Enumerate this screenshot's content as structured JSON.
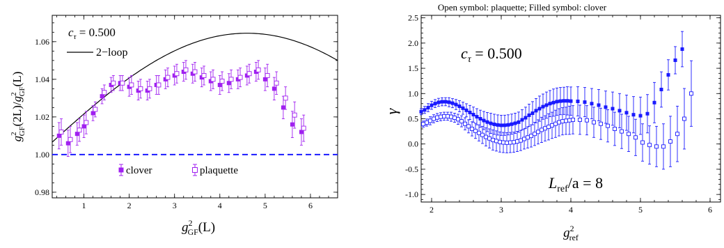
{
  "chart_data": [
    {
      "type": "scatter",
      "annotation": "c_τ = 0.500",
      "xlabel": "g²_GF(L)",
      "ylabel": "g²_GF(2L)/g²_GF(L)",
      "xlim": [
        0.3,
        6.6
      ],
      "ylim": [
        0.977,
        1.074
      ],
      "x_ticks": [
        "1",
        "2",
        "3",
        "4",
        "5",
        "6"
      ],
      "y_ticks": [
        "0.98",
        "1.00",
        "1.02",
        "1.04",
        "1.06"
      ],
      "reference_line": {
        "y": 1.0,
        "style": "dashed",
        "color": "#1a1aff"
      },
      "curve": {
        "name": "2−loop",
        "color": "#000000"
      },
      "legend_position": "bottom",
      "series": [
        {
          "name": "clover",
          "marker": "filled-square",
          "color": "#a020f0",
          "x": [
            0.45,
            0.65,
            0.85,
            1.0,
            1.2,
            1.4,
            1.6,
            1.8,
            2.0,
            2.2,
            2.4,
            2.6,
            2.8,
            3.0,
            3.2,
            3.4,
            3.6,
            3.8,
            4.0,
            4.2,
            4.4,
            4.6,
            4.8,
            5.0,
            5.2,
            5.4,
            5.6,
            5.8
          ],
          "y": [
            1.01,
            1.006,
            1.011,
            1.015,
            1.022,
            1.031,
            1.037,
            1.038,
            1.036,
            1.034,
            1.034,
            1.037,
            1.04,
            1.042,
            1.044,
            1.043,
            1.041,
            1.039,
            1.037,
            1.038,
            1.04,
            1.042,
            1.044,
            1.04,
            1.035,
            1.025,
            1.016,
            1.012
          ],
          "err": [
            0.007,
            0.007,
            0.006,
            0.006,
            0.004,
            0.004,
            0.004,
            0.004,
            0.005,
            0.005,
            0.005,
            0.005,
            0.005,
            0.005,
            0.005,
            0.005,
            0.005,
            0.005,
            0.005,
            0.005,
            0.005,
            0.005,
            0.005,
            0.006,
            0.006,
            0.006,
            0.007,
            0.007
          ]
        },
        {
          "name": "plaquette",
          "marker": "open-square",
          "color": "#a020f0",
          "x": [
            0.5,
            0.7,
            0.9,
            1.05,
            1.25,
            1.45,
            1.65,
            1.85,
            2.05,
            2.25,
            2.45,
            2.65,
            2.85,
            3.05,
            3.25,
            3.45,
            3.65,
            3.85,
            4.05,
            4.25,
            4.45,
            4.65,
            4.85,
            5.05,
            5.25,
            5.45,
            5.65,
            5.85
          ],
          "y": [
            1.012,
            1.008,
            1.013,
            1.017,
            1.024,
            1.033,
            1.038,
            1.038,
            1.037,
            1.035,
            1.035,
            1.037,
            1.041,
            1.043,
            1.045,
            1.044,
            1.042,
            1.04,
            1.039,
            1.04,
            1.041,
            1.043,
            1.045,
            1.042,
            1.038,
            1.03,
            1.021,
            1.014
          ],
          "err": [
            0.007,
            0.007,
            0.006,
            0.006,
            0.004,
            0.004,
            0.004,
            0.004,
            0.005,
            0.005,
            0.005,
            0.005,
            0.005,
            0.005,
            0.005,
            0.005,
            0.005,
            0.005,
            0.005,
            0.005,
            0.005,
            0.005,
            0.005,
            0.006,
            0.006,
            0.006,
            0.007,
            0.007
          ]
        }
      ]
    },
    {
      "type": "scatter",
      "title": "Open symbol: plaquette;   Filled symbol: clover",
      "annotation": "c_τ = 0.500",
      "annotation2": "L_ref/a = 8",
      "xlabel": "g²_ref",
      "ylabel": "γ",
      "xlim": [
        1.85,
        6.15
      ],
      "ylim": [
        -1.15,
        2.55
      ],
      "x_ticks": [
        "2",
        "3",
        "4",
        "5",
        "6"
      ],
      "y_ticks": [
        "-1.0",
        "-0.5",
        "0.0",
        "0.5",
        "1.0",
        "1.5",
        "2.0",
        "2.5"
      ],
      "series": [
        {
          "name": "clover",
          "marker": "filled-square",
          "color": "#1a1aff",
          "x": [
            1.85,
            1.9,
            1.95,
            2.0,
            2.05,
            2.1,
            2.15,
            2.2,
            2.25,
            2.3,
            2.35,
            2.4,
            2.45,
            2.5,
            2.55,
            2.6,
            2.65,
            2.7,
            2.75,
            2.8,
            2.85,
            2.9,
            2.95,
            3.0,
            3.05,
            3.1,
            3.15,
            3.2,
            3.25,
            3.3,
            3.35,
            3.4,
            3.45,
            3.5,
            3.55,
            3.6,
            3.65,
            3.7,
            3.75,
            3.8,
            3.85,
            3.9,
            3.95,
            4.0,
            4.1,
            4.2,
            4.3,
            4.4,
            4.5,
            4.6,
            4.7,
            4.8,
            4.9,
            5.0,
            5.1,
            5.2,
            5.3,
            5.4,
            5.5,
            5.6
          ],
          "y": [
            0.64,
            0.675,
            0.72,
            0.767,
            0.801,
            0.825,
            0.837,
            0.838,
            0.828,
            0.809,
            0.782,
            0.748,
            0.709,
            0.668,
            0.625,
            0.582,
            0.54,
            0.5,
            0.465,
            0.435,
            0.409,
            0.39,
            0.377,
            0.37,
            0.371,
            0.379,
            0.393,
            0.411,
            0.433,
            0.479,
            0.52,
            0.57,
            0.61,
            0.66,
            0.7,
            0.74,
            0.77,
            0.8,
            0.82,
            0.84,
            0.85,
            0.855,
            0.855,
            0.85,
            0.845,
            0.83,
            0.8,
            0.77,
            0.73,
            0.7,
            0.66,
            0.62,
            0.58,
            0.56,
            0.6,
            0.82,
            1.08,
            1.37,
            1.66,
            1.88
          ],
          "err": [
            0.06,
            0.07,
            0.08,
            0.08,
            0.08,
            0.08,
            0.08,
            0.08,
            0.09,
            0.09,
            0.1,
            0.11,
            0.12,
            0.13,
            0.14,
            0.15,
            0.16,
            0.17,
            0.18,
            0.19,
            0.2,
            0.2,
            0.2,
            0.2,
            0.2,
            0.2,
            0.2,
            0.2,
            0.2,
            0.2,
            0.21,
            0.22,
            0.23,
            0.24,
            0.25,
            0.25,
            0.26,
            0.26,
            0.27,
            0.27,
            0.27,
            0.27,
            0.28,
            0.28,
            0.29,
            0.29,
            0.3,
            0.31,
            0.32,
            0.33,
            0.34,
            0.35,
            0.36,
            0.37,
            0.38,
            0.4,
            0.35,
            0.3,
            0.27,
            0.35
          ]
        },
        {
          "name": "plaquette",
          "marker": "open-square",
          "color": "#1a1aff",
          "x": [
            1.88,
            1.93,
            1.98,
            2.03,
            2.08,
            2.13,
            2.18,
            2.23,
            2.28,
            2.33,
            2.38,
            2.43,
            2.48,
            2.53,
            2.58,
            2.63,
            2.68,
            2.73,
            2.78,
            2.83,
            2.88,
            2.93,
            2.98,
            3.03,
            3.08,
            3.13,
            3.18,
            3.23,
            3.28,
            3.33,
            3.38,
            3.43,
            3.48,
            3.53,
            3.58,
            3.63,
            3.68,
            3.73,
            3.78,
            3.83,
            3.88,
            3.93,
            3.98,
            4.03,
            4.13,
            4.23,
            4.33,
            4.43,
            4.53,
            4.63,
            4.73,
            4.83,
            4.93,
            5.03,
            5.13,
            5.23,
            5.33,
            5.43,
            5.53,
            5.63,
            5.73
          ],
          "y": [
            0.395,
            0.425,
            0.46,
            0.5,
            0.525,
            0.54,
            0.55,
            0.55,
            0.54,
            0.52,
            0.49,
            0.45,
            0.4,
            0.35,
            0.3,
            0.26,
            0.22,
            0.18,
            0.14,
            0.11,
            0.08,
            0.06,
            0.04,
            0.03,
            0.025,
            0.03,
            0.035,
            0.05,
            0.07,
            0.1,
            0.13,
            0.16,
            0.2,
            0.24,
            0.28,
            0.31,
            0.34,
            0.37,
            0.4,
            0.43,
            0.45,
            0.46,
            0.47,
            0.48,
            0.48,
            0.47,
            0.43,
            0.4,
            0.36,
            0.3,
            0.25,
            0.2,
            0.13,
            0.03,
            -0.02,
            -0.05,
            -0.05,
            0.05,
            0.2,
            0.5,
            1.0
          ],
          "err": [
            0.06,
            0.07,
            0.08,
            0.08,
            0.08,
            0.08,
            0.08,
            0.08,
            0.09,
            0.09,
            0.1,
            0.11,
            0.12,
            0.13,
            0.14,
            0.15,
            0.16,
            0.17,
            0.18,
            0.19,
            0.2,
            0.2,
            0.2,
            0.2,
            0.2,
            0.2,
            0.2,
            0.2,
            0.2,
            0.2,
            0.21,
            0.22,
            0.23,
            0.24,
            0.25,
            0.25,
            0.26,
            0.26,
            0.27,
            0.27,
            0.27,
            0.27,
            0.28,
            0.28,
            0.29,
            0.29,
            0.3,
            0.31,
            0.32,
            0.33,
            0.34,
            0.35,
            0.36,
            0.37,
            0.38,
            0.4,
            0.45,
            0.5,
            0.55,
            0.6,
            0.65
          ]
        }
      ]
    }
  ],
  "left": {
    "annotation": {
      "base": "c",
      "sub": "τ",
      "rest": " = 0.500"
    },
    "legend_curve": "2−loop",
    "legend_clover": "clover",
    "legend_plaquette": "plaquette",
    "ylabel": {
      "g": "g",
      "sup": "2",
      "sub": "GF",
      "mid": "(2L)/",
      "g2": "g",
      "sup2": "2",
      "sub2": "GF",
      "end": "(L)"
    },
    "xlabel": {
      "g": "g",
      "sup": "2",
      "sub": "GF",
      "end": "(L)"
    }
  },
  "right": {
    "title": "Open symbol: plaquette;   Filled symbol: clover",
    "annotation": {
      "base": "c",
      "sub": "τ",
      "rest": " = 0.500"
    },
    "annotation2": {
      "base": "L",
      "sub": "ref",
      "rest": "/a = 8"
    },
    "ylabel": "γ",
    "xlabel": {
      "g": "g",
      "sup": "2",
      "sub": "ref"
    }
  }
}
